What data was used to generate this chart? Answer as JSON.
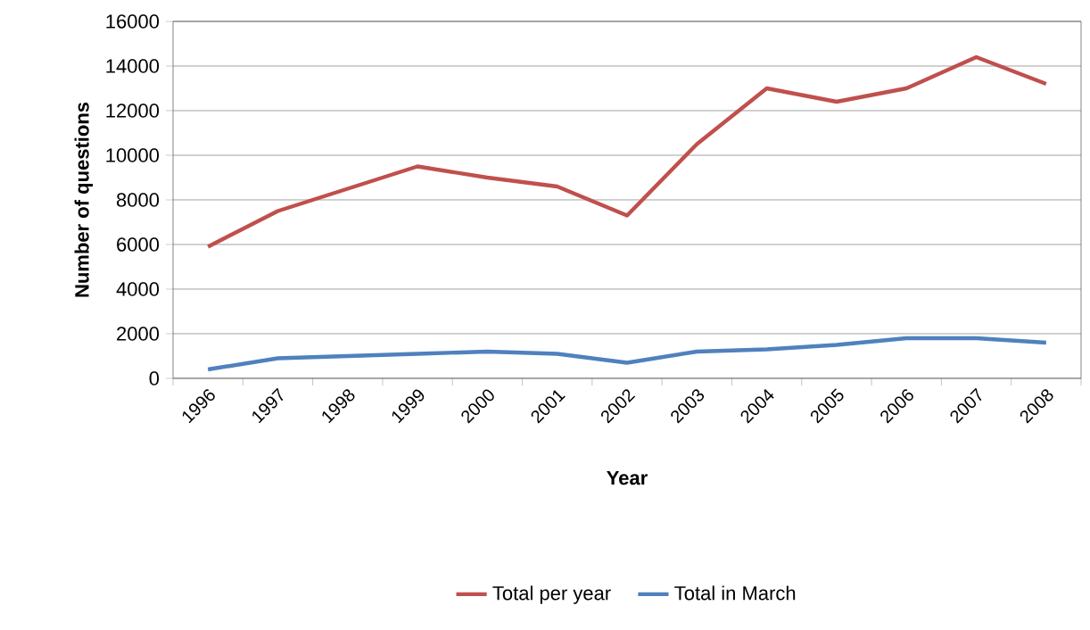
{
  "chart_data": {
    "type": "line",
    "xlabel": "Year",
    "ylabel": "Number of questions",
    "categories": [
      "1996",
      "1997",
      "1998",
      "1999",
      "2000",
      "2001",
      "2002",
      "2003",
      "2004",
      "2005",
      "2006",
      "2007",
      "2008"
    ],
    "series": [
      {
        "name": "Total per year",
        "color": "#c0504d",
        "values": [
          5900,
          7500,
          8500,
          9500,
          9000,
          8600,
          7300,
          10500,
          13000,
          12400,
          13000,
          14400,
          13200
        ]
      },
      {
        "name": "Total in March",
        "color": "#4f81bd",
        "values": [
          400,
          900,
          1000,
          1100,
          1200,
          1100,
          700,
          1200,
          1300,
          1500,
          1800,
          1800,
          1600
        ]
      }
    ],
    "ylim": [
      0,
      16000
    ],
    "yticks": [
      0,
      2000,
      4000,
      6000,
      8000,
      10000,
      12000,
      14000,
      16000
    ],
    "grid": "y",
    "legend": "bottom",
    "marker": "none",
    "line_style": "solid"
  }
}
